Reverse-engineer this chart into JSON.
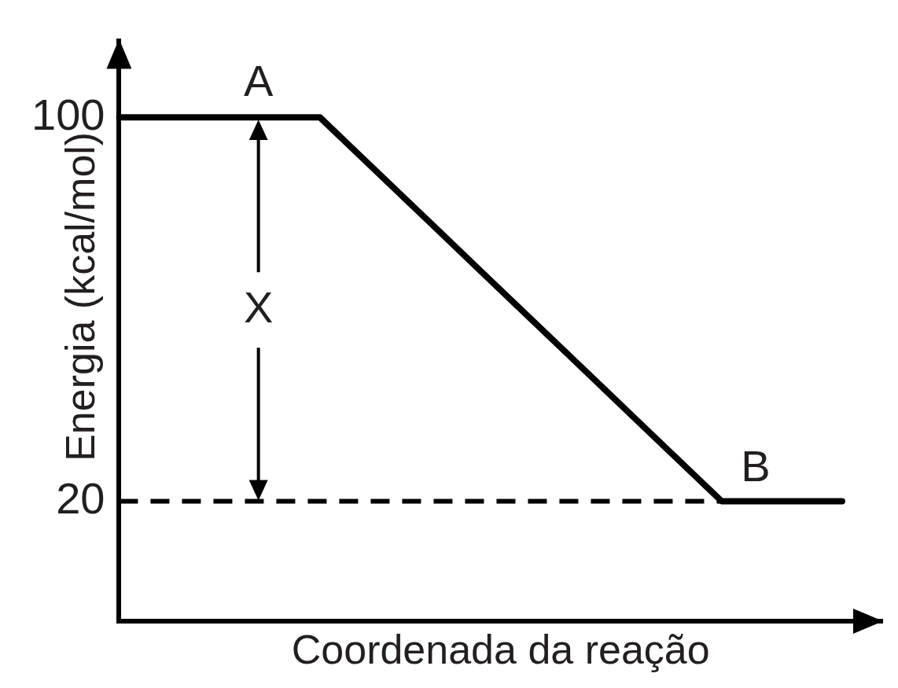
{
  "chart_data": {
    "type": "line",
    "xlabel": "Coordenada da reação",
    "ylabel": "Energia (kcal/mol)",
    "categories": [
      null,
      null,
      null,
      null,
      null,
      null,
      null,
      null,
      null,
      null,
      null,
      null,
      null,
      null,
      null,
      null,
      null,
      null,
      null,
      null
    ],
    "values": [
      100,
      100,
      100,
      100,
      100,
      100,
      92,
      84,
      76,
      68,
      60,
      52,
      44,
      36,
      28,
      20,
      20,
      20,
      20,
      null
    ],
    "color": "#000000",
    "ylim": [
      -5,
      116
    ],
    "yticks": [
      20,
      100
    ],
    "tick_labels": "y",
    "marker": "none",
    "line_style": "solid",
    "ref_lines": [
      {
        "axis": "y",
        "value": 20,
        "line_style": "dashed",
        "color": "#000000"
      }
    ],
    "annotations": [
      {
        "text": "A",
        "y": 100
      },
      {
        "text": "B",
        "y": 20
      },
      "X"
    ]
  }
}
